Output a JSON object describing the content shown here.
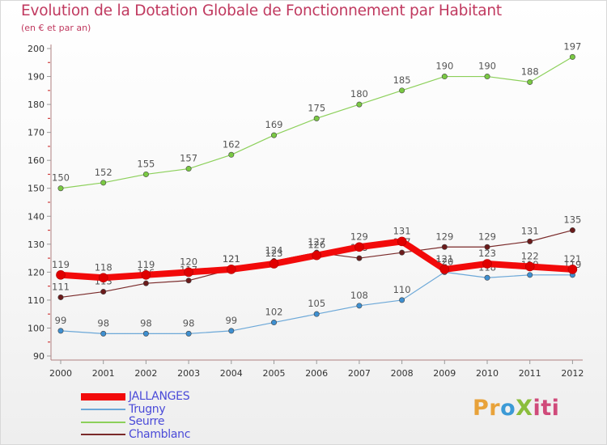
{
  "title": "Evolution de la Dotation Globale de Fonctionnement par Habitant",
  "subtitle": "(en € et par an)",
  "brand": {
    "letters": [
      "Pr",
      "o",
      "X",
      "iti"
    ]
  },
  "chart_data": {
    "type": "line",
    "x": [
      "2000",
      "2001",
      "2002",
      "2003",
      "2004",
      "2005",
      "2006",
      "2007",
      "2008",
      "2009",
      "2010",
      "2011",
      "2012"
    ],
    "ylim": [
      90,
      200
    ],
    "yticks": [
      90,
      100,
      110,
      120,
      130,
      140,
      150,
      160,
      170,
      180,
      190,
      200
    ],
    "grid": false,
    "legend": "bottom-left",
    "series": [
      {
        "name": "Seurre",
        "color": "#8cd05a",
        "marker": "#7ac943",
        "width": 1.2,
        "values": [
          150,
          152,
          155,
          157,
          162,
          169,
          175,
          180,
          185,
          190,
          190,
          188,
          197
        ]
      },
      {
        "name": "Chamblanc",
        "color": "#7a2a2a",
        "marker": "#6b1b1b",
        "width": 1.2,
        "values": [
          111,
          113,
          116,
          117,
          121,
          124,
          127,
          125,
          127,
          129,
          129,
          131,
          135
        ]
      },
      {
        "name": "Trugny",
        "color": "#6ca8d8",
        "marker": "#3e8fd0",
        "width": 1.2,
        "values": [
          99,
          98,
          98,
          98,
          99,
          102,
          105,
          108,
          110,
          120,
          118,
          119,
          119
        ]
      },
      {
        "name": "JALLANGES",
        "color": "#f20a0a",
        "marker": "#e00000",
        "width": 8,
        "values": [
          119,
          118,
          119,
          120,
          121,
          123,
          126,
          129,
          131,
          121,
          123,
          122,
          121
        ]
      }
    ],
    "legend_order": [
      "JALLANGES",
      "Trugny",
      "Seurre",
      "Chamblanc"
    ]
  }
}
